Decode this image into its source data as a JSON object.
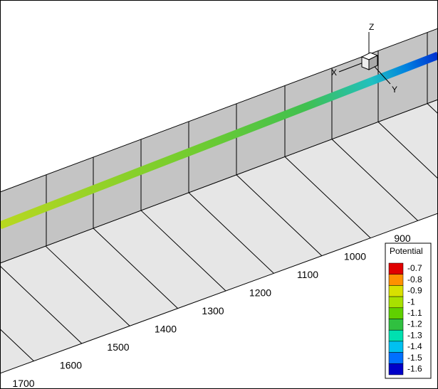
{
  "axis_triad": {
    "x": "X",
    "y": "Y",
    "z": "Z"
  },
  "axis_labels": [
    900,
    1000,
    1100,
    1200,
    1300,
    1400,
    1500,
    1600,
    1700
  ],
  "legend": {
    "title": "Potential",
    "levels": [
      {
        "label": -0.7,
        "color": "#e00000"
      },
      {
        "label": -0.8,
        "color": "#ff9000"
      },
      {
        "label": -0.9,
        "color": "#d8e000"
      },
      {
        "label": -1,
        "color": "#a8e000"
      },
      {
        "label": -1.1,
        "color": "#60d000"
      },
      {
        "label": -1.2,
        "color": "#30c040"
      },
      {
        "label": -1.3,
        "color": "#00e0b0"
      },
      {
        "label": -1.4,
        "color": "#00c0f0"
      },
      {
        "label": -1.5,
        "color": "#0070ff"
      },
      {
        "label": -1.6,
        "color": "#0000c8"
      }
    ]
  }
}
